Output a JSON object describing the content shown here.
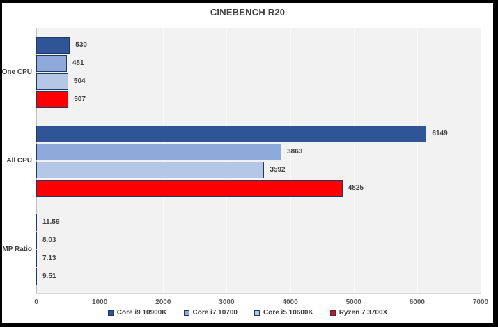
{
  "title": "CINEBENCH R20",
  "chart_data": {
    "type": "bar",
    "orientation": "horizontal",
    "title": "CINEBENCH R20",
    "categories": [
      "One CPU",
      "All CPU",
      "MP Ratio"
    ],
    "series": [
      {
        "name": "Core i9 10900K",
        "color": "#2F5597",
        "values": [
          530,
          6149,
          11.59
        ]
      },
      {
        "name": "Core i7 10700",
        "color": "#8EAADB",
        "values": [
          481,
          3863,
          8.03
        ]
      },
      {
        "name": "Core i5 10600K",
        "color": "#B4C7E7",
        "values": [
          504,
          3592,
          7.13
        ]
      },
      {
        "name": "Ryzen 7 3700X",
        "color": "#FF0000",
        "values": [
          507,
          4825,
          9.51
        ]
      }
    ],
    "xlim": [
      0,
      7000
    ],
    "x_ticks": [
      "0",
      "1000",
      "2000",
      "3000",
      "4000",
      "5000",
      "6000",
      "7000"
    ],
    "grid": true,
    "legend_position": "bottom",
    "colors": {
      "plot_bg": "#F2F2F2",
      "bar_border": "#1F3864",
      "gridline": "#FAFAFA",
      "axis_line": "#BFBFBF",
      "label_text": "#404040",
      "tick_text": "#595959",
      "frame_border": "#000000",
      "background": "#FFFFFF"
    }
  }
}
